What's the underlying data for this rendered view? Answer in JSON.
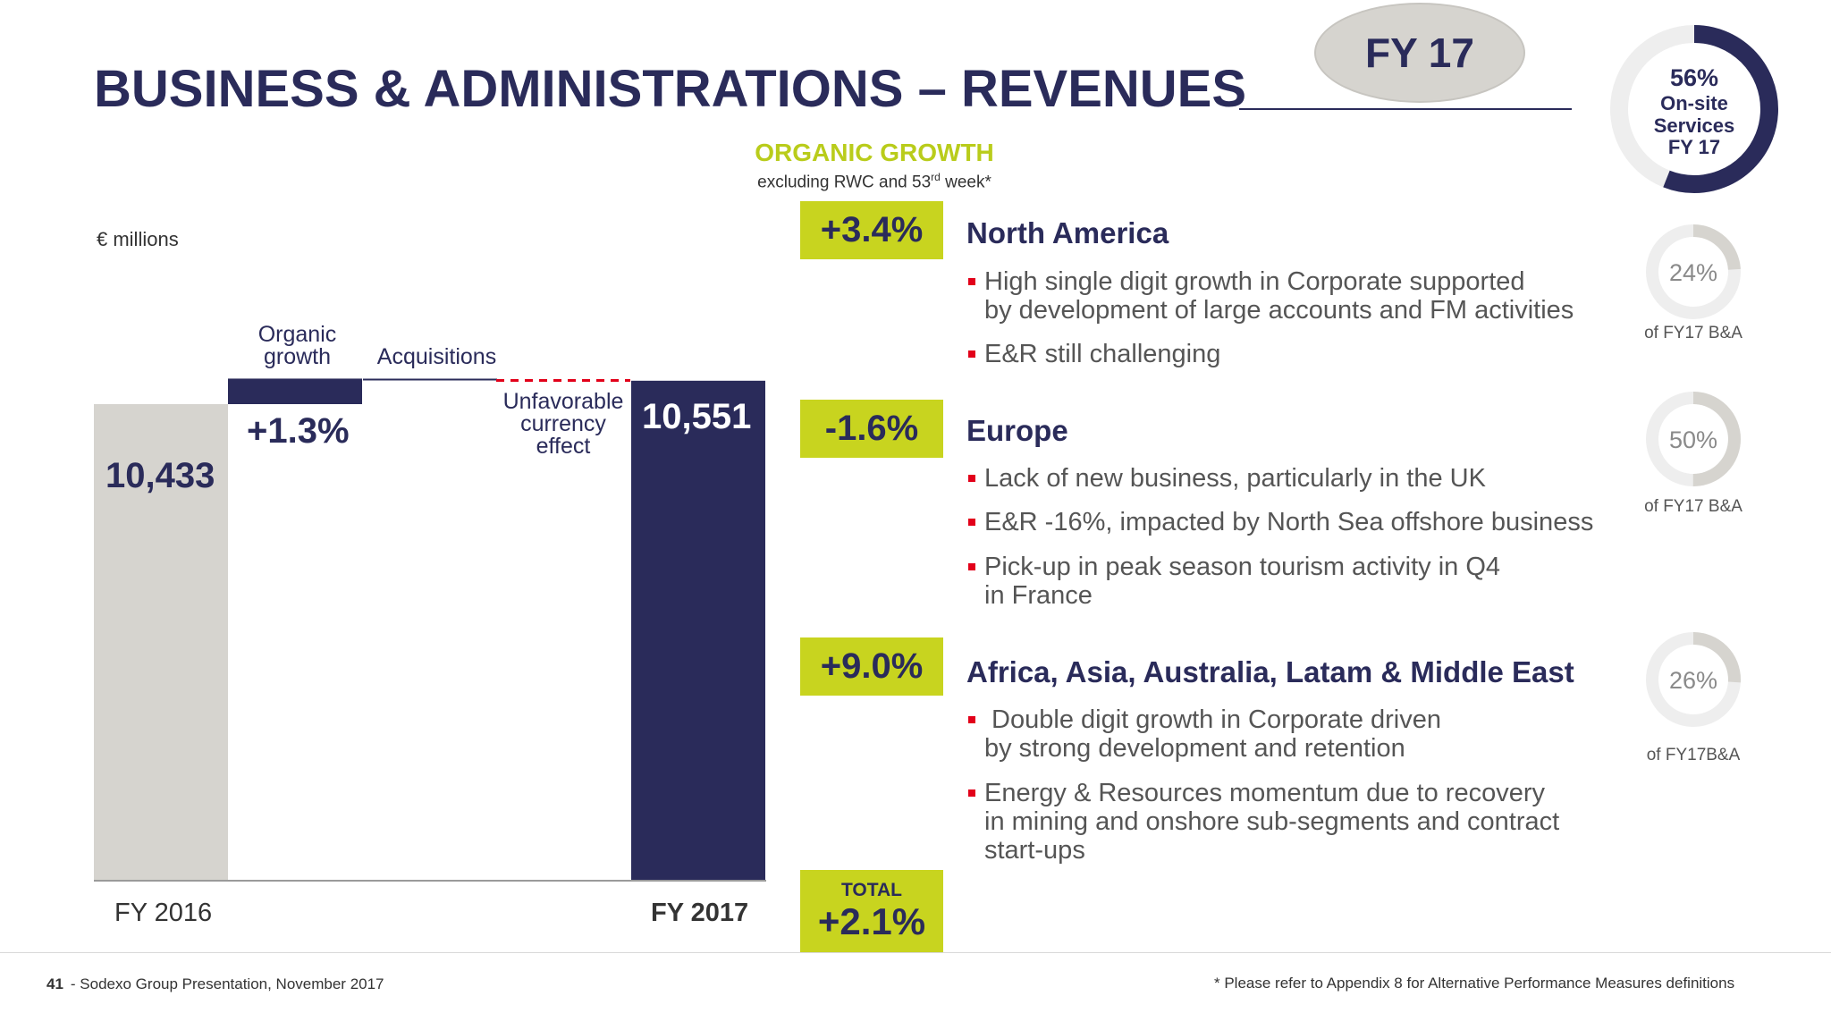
{
  "title": "BUSINESS & ADMINISTRATIONS – REVENUES",
  "badge": "FY 17",
  "organic": {
    "title": "ORGANIC GROWTH",
    "subtitle_pre": "excluding RWC and 53",
    "subtitle_sup": "rd",
    "subtitle_post": " week*"
  },
  "onsite_donut": {
    "value": 56,
    "percent_label": "56%",
    "line1": "On-site",
    "line2": "Services",
    "line3": "FY 17",
    "color": "#2a2b5a"
  },
  "chart_data": {
    "type": "bar",
    "unit_label": "€ millions",
    "categories": [
      "FY 2016",
      "Organic growth",
      "Acquisitions",
      "Unfavorable currency effect",
      "FY 2017"
    ],
    "values": [
      10433,
      136,
      0,
      -18,
      10551
    ],
    "display_values": [
      "10,433",
      "+1.3%",
      "",
      "",
      "10,551"
    ],
    "step_labels": {
      "organic": "Organic growth",
      "acquisitions": "Acquisitions",
      "currency": "Unfavorable currency effect"
    },
    "x_labels": [
      "FY 2016",
      "FY 2017"
    ],
    "colors": {
      "start": "#d6d4cf",
      "end": "#2a2b5a",
      "organic": "#2a2b5a",
      "currency": "#e2001a"
    }
  },
  "regions": [
    {
      "growth": "+3.4%",
      "name": "North America",
      "bullets": [
        "High single digit growth in Corporate supported\nby development of large accounts and FM activities",
        "E&R still challenging"
      ],
      "share_value": 24,
      "share_label": "24%",
      "share_caption": "of FY17  B&A"
    },
    {
      "growth": "-1.6%",
      "name": "Europe",
      "bullets": [
        "Lack of new business, particularly in the UK",
        "E&R -16%, impacted by North Sea offshore business",
        "Pick-up in peak season tourism activity in Q4\nin France"
      ],
      "share_value": 50,
      "share_label": "50%",
      "share_caption": "of FY17 B&A"
    },
    {
      "growth": "+9.0%",
      "name": "Africa, Asia, Australia, Latam & Middle East",
      "bullets": [
        " Double digit growth in Corporate driven\nby strong development and retention",
        "Energy & Resources momentum due to recovery\nin mining and onshore sub-segments and contract\nstart-ups"
      ],
      "share_value": 26,
      "share_label": "26%",
      "share_caption": "of FY17B&A"
    }
  ],
  "total": {
    "label": "TOTAL",
    "value": "+2.1%"
  },
  "footer": {
    "page": "41",
    "left": "- Sodexo Group Presentation, November 2017",
    "right": "* Please refer to Appendix 8 for Alternative Performance Measures definitions"
  }
}
